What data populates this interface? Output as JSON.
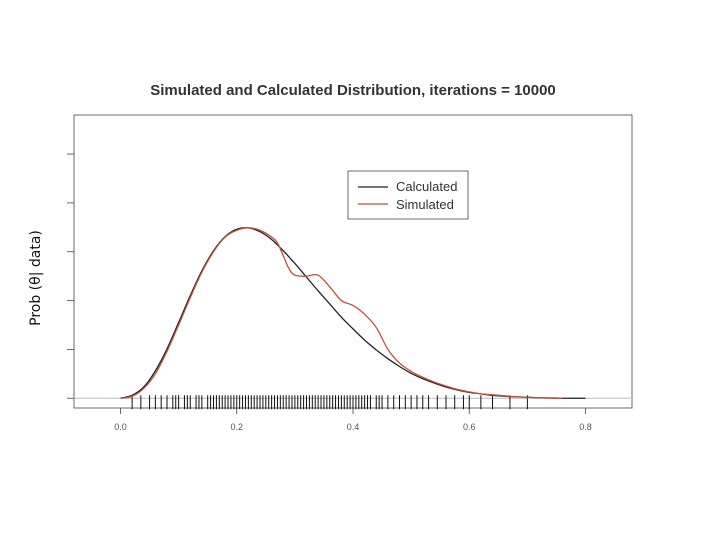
{
  "chart_data": {
    "type": "line",
    "title": "Simulated and Calculated Distribution, iterations =  10000",
    "xlabel": "",
    "ylabel": "Prob (θ| data)",
    "xlim": [
      -0.08,
      0.88
    ],
    "ylim": [
      -0.2,
      5.8
    ],
    "x_ticks": [
      0.0,
      0.2,
      0.4,
      0.6,
      0.8
    ],
    "x_tick_labels": [
      "0.0",
      "0.2",
      "0.4",
      "0.6",
      "0.8"
    ],
    "y_ticks": [
      0,
      1,
      2,
      3,
      4,
      5,
      6
    ],
    "legend_position": "top-right",
    "series": [
      {
        "name": "Calculated",
        "color": "#222222",
        "x": [
          0.0,
          0.02,
          0.04,
          0.06,
          0.08,
          0.1,
          0.12,
          0.14,
          0.16,
          0.18,
          0.2,
          0.22,
          0.24,
          0.26,
          0.28,
          0.3,
          0.32,
          0.34,
          0.36,
          0.38,
          0.4,
          0.42,
          0.44,
          0.46,
          0.48,
          0.5,
          0.52,
          0.54,
          0.56,
          0.58,
          0.6,
          0.62,
          0.64,
          0.66,
          0.68,
          0.7,
          0.72,
          0.74,
          0.76,
          0.78,
          0.8
        ],
        "y": [
          0.0,
          0.06,
          0.23,
          0.56,
          1.01,
          1.55,
          2.1,
          2.61,
          3.02,
          3.31,
          3.46,
          3.49,
          3.41,
          3.25,
          3.02,
          2.76,
          2.48,
          2.2,
          1.93,
          1.66,
          1.42,
          1.19,
          0.99,
          0.81,
          0.65,
          0.51,
          0.4,
          0.31,
          0.23,
          0.17,
          0.12,
          0.09,
          0.06,
          0.04,
          0.03,
          0.02,
          0.01,
          0.005,
          0.0,
          0.0,
          0.0
        ]
      },
      {
        "name": "Simulated",
        "color": "#c0503a",
        "x": [
          0.0,
          0.02,
          0.04,
          0.06,
          0.08,
          0.1,
          0.12,
          0.14,
          0.16,
          0.18,
          0.2,
          0.22,
          0.24,
          0.26,
          0.27,
          0.28,
          0.29,
          0.3,
          0.32,
          0.34,
          0.36,
          0.38,
          0.4,
          0.42,
          0.44,
          0.46,
          0.48,
          0.5,
          0.52,
          0.54,
          0.56,
          0.58,
          0.6,
          0.62,
          0.64,
          0.66,
          0.68,
          0.7,
          0.72,
          0.74,
          0.76
        ],
        "y": [
          0.0,
          0.04,
          0.2,
          0.5,
          0.96,
          1.5,
          2.06,
          2.58,
          3.0,
          3.3,
          3.44,
          3.49,
          3.44,
          3.3,
          3.18,
          2.92,
          2.65,
          2.52,
          2.5,
          2.52,
          2.28,
          2.0,
          1.9,
          1.72,
          1.45,
          1.0,
          0.72,
          0.55,
          0.43,
          0.33,
          0.25,
          0.18,
          0.13,
          0.09,
          0.07,
          0.05,
          0.03,
          0.02,
          0.01,
          0.005,
          0.0
        ]
      }
    ],
    "rug": [
      0.02,
      0.035,
      0.05,
      0.06,
      0.07,
      0.08,
      0.09,
      0.095,
      0.1,
      0.11,
      0.115,
      0.12,
      0.13,
      0.135,
      0.14,
      0.15,
      0.155,
      0.16,
      0.165,
      0.17,
      0.175,
      0.18,
      0.185,
      0.19,
      0.195,
      0.2,
      0.205,
      0.21,
      0.215,
      0.22,
      0.225,
      0.23,
      0.235,
      0.24,
      0.245,
      0.25,
      0.255,
      0.26,
      0.265,
      0.27,
      0.275,
      0.28,
      0.285,
      0.29,
      0.295,
      0.3,
      0.305,
      0.31,
      0.315,
      0.32,
      0.325,
      0.33,
      0.335,
      0.34,
      0.345,
      0.35,
      0.355,
      0.36,
      0.365,
      0.37,
      0.375,
      0.38,
      0.385,
      0.39,
      0.395,
      0.4,
      0.405,
      0.41,
      0.415,
      0.42,
      0.425,
      0.43,
      0.44,
      0.445,
      0.45,
      0.46,
      0.47,
      0.48,
      0.49,
      0.5,
      0.51,
      0.52,
      0.53,
      0.545,
      0.56,
      0.575,
      0.59,
      0.6,
      0.62,
      0.64,
      0.67,
      0.7
    ]
  }
}
